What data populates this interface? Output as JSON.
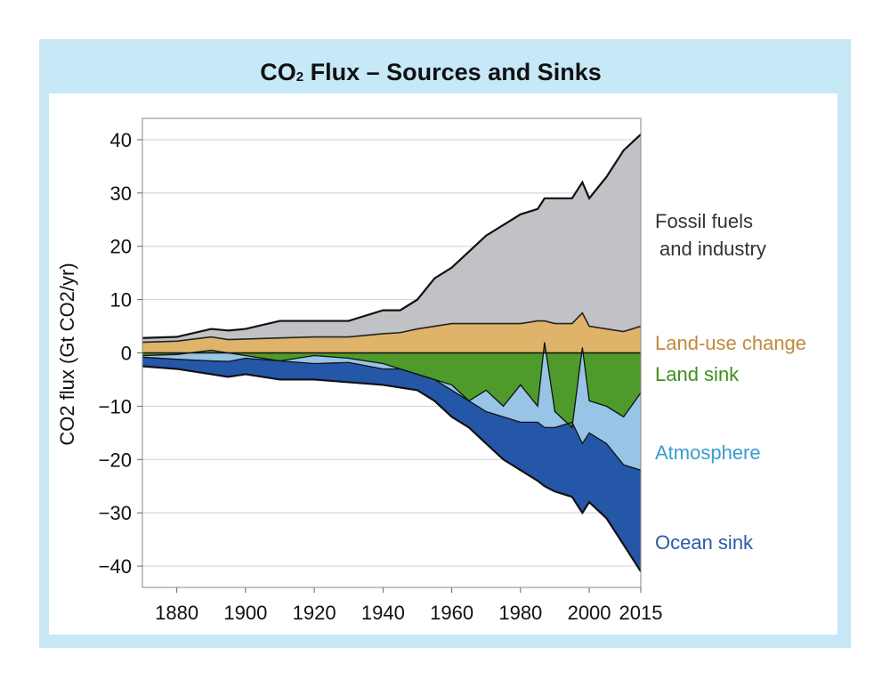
{
  "title_main": "CO",
  "title_sub": "2",
  "title_rest": " Flux – Sources and Sinks",
  "chart_data": {
    "type": "area",
    "title": "CO2 Flux – Sources and Sinks",
    "ylabel": "CO2 flux (Gt CO2/yr)",
    "xlabel": "",
    "xlim": [
      1870,
      2015
    ],
    "ylim": [
      -44,
      44
    ],
    "xticks": [
      "1880",
      "1900",
      "1920",
      "1940",
      "1960",
      "1980",
      "2000",
      "2015"
    ],
    "yticks": [
      "40",
      "30",
      "20",
      "10",
      "0",
      "-10",
      "-20",
      "-30",
      "-40"
    ],
    "grid": true,
    "legend": "right-side labels",
    "colors": {
      "fossil": "#c0c2c5",
      "landuse": "#dfb46a",
      "landsink": "#4e9a2b",
      "atmosphere": "#98c4e5",
      "ocean": "#2457a8",
      "landuse_label": "#c08a3c",
      "landsink_label": "#3e8f1f",
      "atmosphere_label": "#3a9ccd",
      "ocean_label": "#2b5aa6",
      "fossil_label": "#333333"
    },
    "labels": {
      "fossil_line1": "Fossil fuels",
      "fossil_line2": "and industry",
      "landuse": "Land-use change",
      "landsink": "Land sink",
      "atmosphere": "Atmosphere",
      "ocean": "Ocean sink"
    },
    "x": [
      1870,
      1880,
      1890,
      1895,
      1900,
      1910,
      1920,
      1930,
      1940,
      1945,
      1950,
      1955,
      1960,
      1965,
      1970,
      1975,
      1980,
      1985,
      1987,
      1990,
      1995,
      1998,
      2000,
      2005,
      2010,
      2015
    ],
    "series": [
      {
        "name": "Fossil fuels and industry",
        "values": [
          2.8,
          3.0,
          4.5,
          4.2,
          4.5,
          6.0,
          6.0,
          6.0,
          8.0,
          8.0,
          10,
          14,
          16,
          19,
          22,
          24,
          26,
          27,
          29,
          29,
          29,
          32,
          29,
          33,
          38,
          41
        ]
      },
      {
        "name": "Land-use change",
        "values": [
          2.0,
          2.2,
          3.0,
          2.5,
          2.6,
          2.8,
          3.0,
          3.0,
          3.6,
          3.8,
          4.5,
          5.0,
          5.5,
          5.5,
          5.5,
          5.5,
          5.5,
          6.0,
          6.0,
          5.5,
          5.5,
          7.5,
          5.0,
          4.5,
          4.0,
          5.0
        ]
      },
      {
        "name": "Land sink",
        "values": [
          -0.5,
          -0.3,
          0.5,
          0,
          -0.5,
          -1.5,
          -0.5,
          -1.0,
          -2.0,
          -3.0,
          -4.0,
          -5.0,
          -6.0,
          -9.0,
          -7.0,
          -10,
          -6.0,
          -10,
          2.0,
          -11,
          -14,
          1.0,
          -9.0,
          -10,
          -12,
          -7.5
        ]
      },
      {
        "name": "Atmosphere",
        "values": [
          -0.8,
          -1.2,
          -1.5,
          -1.6,
          -1.0,
          -1.5,
          -2.0,
          -1.8,
          -3.0,
          -3.0,
          -4.0,
          -5.0,
          -7.0,
          -9.0,
          -11,
          -12,
          -13,
          -13,
          -14,
          -14,
          -13,
          -17,
          -15,
          -17,
          -21,
          -22
        ]
      },
      {
        "name": "Ocean sink",
        "values": [
          -2.5,
          -3.0,
          -4.0,
          -4.5,
          -4.0,
          -5.0,
          -5.0,
          -5.5,
          -6.0,
          -6.5,
          -7.0,
          -9.0,
          -12,
          -14,
          -17,
          -20,
          -22,
          -24,
          -25,
          -26,
          -27,
          -30,
          -28,
          -31,
          -36,
          -41
        ]
      }
    ]
  }
}
